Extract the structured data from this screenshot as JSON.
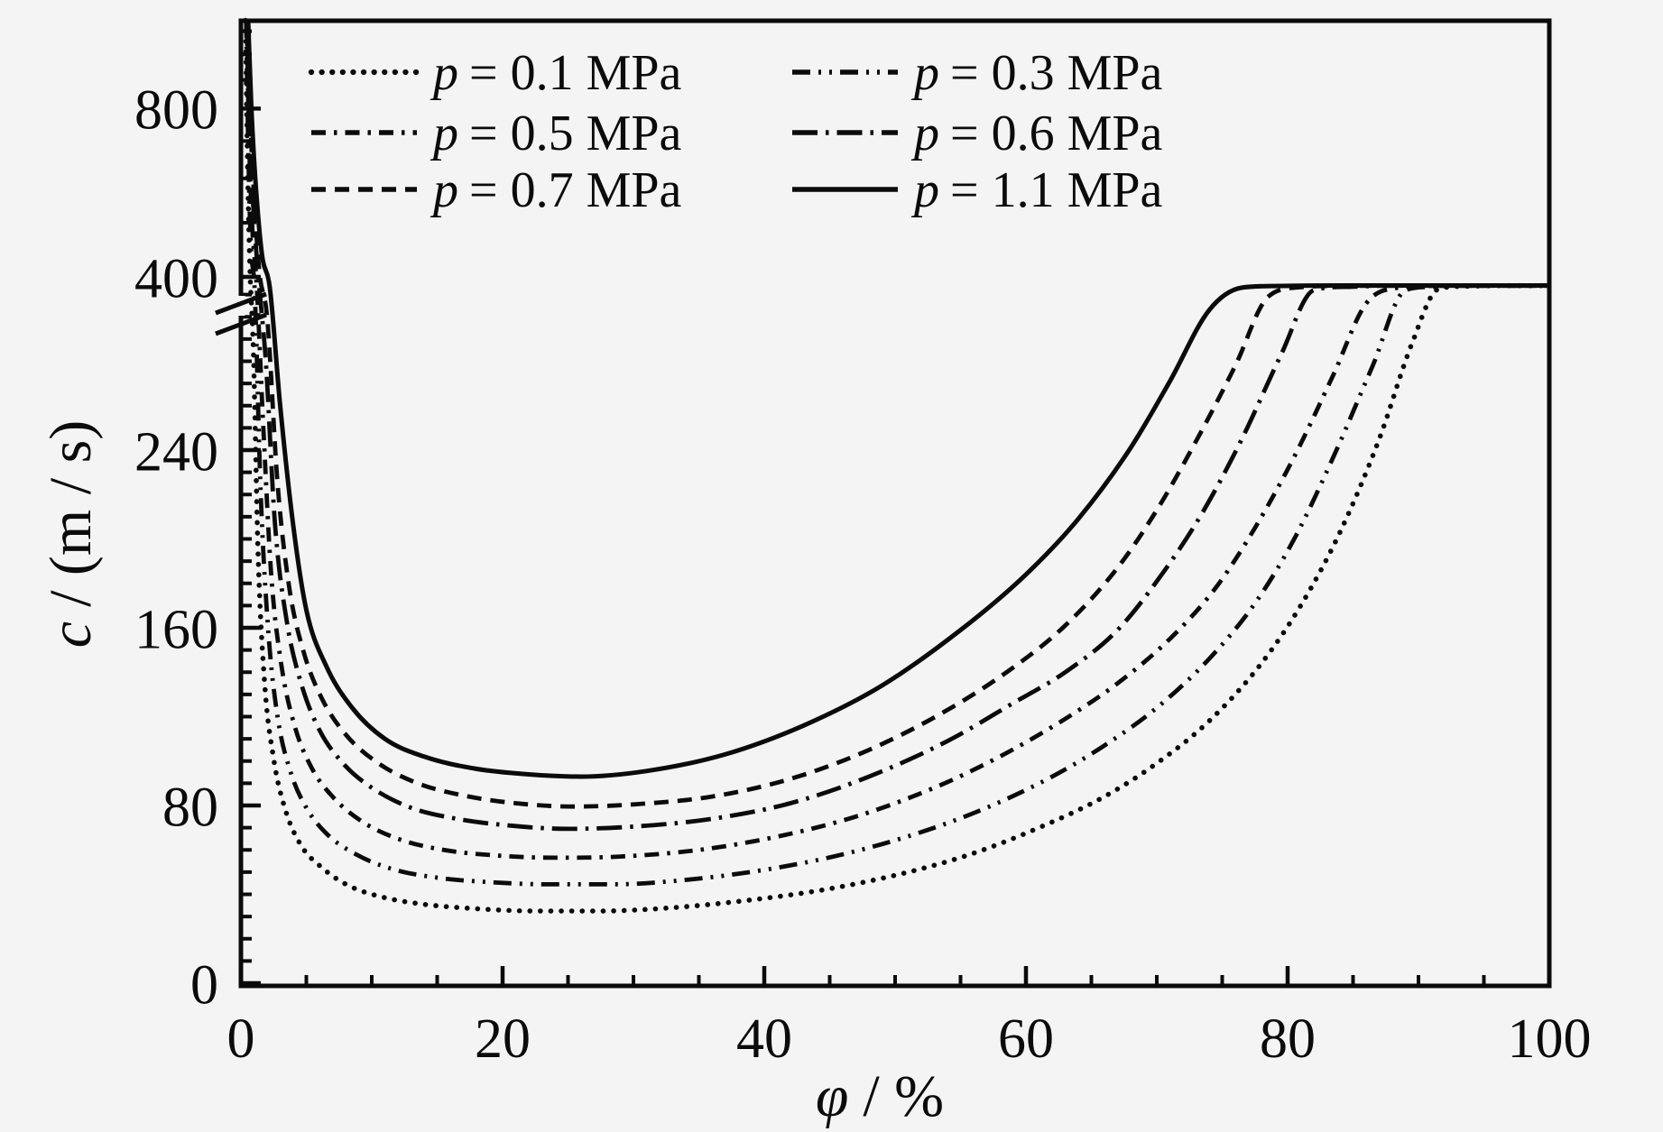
{
  "figure": {
    "background": "#f4f4f4",
    "ink": "#0b0b0b"
  },
  "chart_data": {
    "type": "line",
    "title": "",
    "xlabel": "φ / %",
    "xlabel_var": "φ",
    "xlabel_rest": "/ %",
    "ylabel": "c / (m / s)",
    "ylabel_var": "c",
    "ylabel_rest": "/ (m / s)",
    "x_axis": {
      "min": 0,
      "max": 100,
      "major_ticks": [
        0,
        20,
        40,
        60,
        80,
        100
      ],
      "minor_step": 5
    },
    "y_axis_linear": {
      "min": 0,
      "max": 312,
      "major_ticks": [
        0,
        80,
        160,
        240
      ],
      "minor_step": 10
    },
    "y_axis_break": {
      "between": [
        312,
        400
      ]
    },
    "y_axis_upper": {
      "scale": "log",
      "major_ticks": [
        400,
        800
      ],
      "minor_ticks": [
        500,
        600,
        700,
        900,
        1000,
        1100
      ]
    },
    "grid": false,
    "legend_position": "top-left-two-columns",
    "legend": [
      {
        "var": "p",
        "value": "0.1",
        "unit": "MPa",
        "series_index": 0
      },
      {
        "var": "p",
        "value": "0.3",
        "unit": "MPa",
        "series_index": 1
      },
      {
        "var": "p",
        "value": "0.5",
        "unit": "MPa",
        "series_index": 2
      },
      {
        "var": "p",
        "value": "0.6",
        "unit": "MPa",
        "series_index": 3
      },
      {
        "var": "p",
        "value": "0.7",
        "unit": "MPa",
        "series_index": 4
      },
      {
        "var": "p",
        "value": "1.1",
        "unit": "MPa",
        "series_index": 5
      }
    ],
    "series": [
      {
        "label": "p = 0.1 MPa",
        "pressure_MPa": 0.1,
        "line_style": "dotted",
        "points": [
          [
            0.35,
            1150
          ],
          [
            0.5,
            650
          ],
          [
            0.68,
            420
          ],
          [
            0.95,
            285
          ],
          [
            1.3,
            195
          ],
          [
            1.8,
            136
          ],
          [
            2.5,
            101
          ],
          [
            3.4,
            78
          ],
          [
            4.6,
            62
          ],
          [
            6.2,
            52
          ],
          [
            8.2,
            44
          ],
          [
            11,
            38.5
          ],
          [
            14,
            35.5
          ],
          [
            18,
            33.5
          ],
          [
            22.5,
            32.5
          ],
          [
            27.5,
            32.5
          ],
          [
            33,
            34
          ],
          [
            39,
            37.5
          ],
          [
            45,
            42.5
          ],
          [
            51,
            50
          ],
          [
            56,
            58.5
          ],
          [
            61,
            70
          ],
          [
            66,
            84
          ],
          [
            70,
            99
          ],
          [
            74,
            118
          ],
          [
            78,
            144
          ],
          [
            81,
            170
          ],
          [
            84,
            203
          ],
          [
            87,
            245
          ],
          [
            89.5,
            288
          ],
          [
            91.5,
            320
          ],
          [
            93.5,
            339
          ],
          [
            96,
            343
          ],
          [
            100,
            343
          ]
        ]
      },
      {
        "label": "p = 0.3 MPa",
        "pressure_MPa": 0.3,
        "line_style": "dashdotdot",
        "points": [
          [
            0.4,
            1150
          ],
          [
            0.55,
            700
          ],
          [
            0.75,
            460
          ],
          [
            1.05,
            320
          ],
          [
            1.5,
            222
          ],
          [
            2.1,
            158
          ],
          [
            2.8,
            120
          ],
          [
            3.8,
            95
          ],
          [
            5,
            79
          ],
          [
            6.6,
            67
          ],
          [
            8.8,
            58
          ],
          [
            11.5,
            51.5
          ],
          [
            15,
            47.5
          ],
          [
            19,
            45.5
          ],
          [
            23.5,
            44.5
          ],
          [
            28.5,
            44.5
          ],
          [
            34,
            46.5
          ],
          [
            40,
            51
          ],
          [
            46,
            58
          ],
          [
            52,
            68
          ],
          [
            57,
            79
          ],
          [
            62,
            93
          ],
          [
            66,
            107
          ],
          [
            70,
            124
          ],
          [
            74,
            146
          ],
          [
            77.5,
            171
          ],
          [
            80.5,
            200
          ],
          [
            83.5,
            237
          ],
          [
            86.5,
            278
          ],
          [
            89,
            313
          ],
          [
            91,
            335
          ],
          [
            93,
            342
          ],
          [
            100,
            343
          ]
        ]
      },
      {
        "label": "p = 0.5 MPa",
        "pressure_MPa": 0.5,
        "line_style": "dashdot",
        "points": [
          [
            0.45,
            1150
          ],
          [
            0.6,
            740
          ],
          [
            0.85,
            500
          ],
          [
            1.2,
            355
          ],
          [
            1.7,
            252
          ],
          [
            2.3,
            185
          ],
          [
            3.1,
            143
          ],
          [
            4.1,
            116
          ],
          [
            5.4,
            97
          ],
          [
            7,
            84
          ],
          [
            9.2,
            73
          ],
          [
            12,
            65
          ],
          [
            15.5,
            60
          ],
          [
            19.5,
            57.5
          ],
          [
            24,
            56.5
          ],
          [
            29,
            57
          ],
          [
            35,
            60
          ],
          [
            41,
            66
          ],
          [
            47,
            75
          ],
          [
            53,
            88
          ],
          [
            58,
            102
          ],
          [
            63,
            119
          ],
          [
            67,
            135
          ],
          [
            71,
            155
          ],
          [
            74.5,
            178
          ],
          [
            77.5,
            205
          ],
          [
            80.5,
            237
          ],
          [
            83.5,
            274
          ],
          [
            86,
            306
          ],
          [
            88.5,
            331
          ],
          [
            90.5,
            341
          ],
          [
            95,
            343
          ],
          [
            100,
            343
          ]
        ]
      },
      {
        "label": "p = 0.6 MPa",
        "pressure_MPa": 0.6,
        "line_style": "dashdotlong",
        "points": [
          [
            0.48,
            1150
          ],
          [
            0.65,
            760
          ],
          [
            0.95,
            530
          ],
          [
            1.35,
            385
          ],
          [
            1.9,
            280
          ],
          [
            2.6,
            207
          ],
          [
            3.5,
            163
          ],
          [
            4.6,
            135
          ],
          [
            6,
            114
          ],
          [
            7.8,
            99
          ],
          [
            10,
            88
          ],
          [
            13,
            79
          ],
          [
            16.5,
            74
          ],
          [
            20.5,
            71
          ],
          [
            25,
            69.5
          ],
          [
            30,
            70.5
          ],
          [
            36,
            74
          ],
          [
            42,
            81
          ],
          [
            48,
            93
          ],
          [
            54,
            109
          ],
          [
            59,
            126
          ],
          [
            63,
            140
          ],
          [
            67,
            159
          ],
          [
            70.5,
            185
          ],
          [
            73.5,
            212
          ],
          [
            76.5,
            245
          ],
          [
            79.5,
            283
          ],
          [
            82,
            314
          ],
          [
            84.5,
            335
          ],
          [
            87,
            342
          ],
          [
            93,
            343
          ],
          [
            100,
            343
          ]
        ]
      },
      {
        "label": "p = 0.7 MPa",
        "pressure_MPa": 0.7,
        "line_style": "dashed",
        "points": [
          [
            0.5,
            1150
          ],
          [
            0.7,
            780
          ],
          [
            1,
            560
          ],
          [
            1.4,
            410
          ],
          [
            2,
            300
          ],
          [
            2.8,
            225
          ],
          [
            3.7,
            178
          ],
          [
            4.8,
            149
          ],
          [
            6.2,
            128
          ],
          [
            8,
            112
          ],
          [
            10.5,
            99
          ],
          [
            13.5,
            90
          ],
          [
            17,
            84.5
          ],
          [
            21,
            81
          ],
          [
            25.5,
            79.5
          ],
          [
            30,
            80.5
          ],
          [
            36,
            84
          ],
          [
            42,
            92
          ],
          [
            48,
            105
          ],
          [
            54,
            123
          ],
          [
            59,
            142
          ],
          [
            63,
            161
          ],
          [
            67,
            187
          ],
          [
            70,
            213
          ],
          [
            73,
            244
          ],
          [
            76,
            278
          ],
          [
            78.5,
            309
          ],
          [
            81,
            333
          ],
          [
            83.5,
            341
          ],
          [
            90,
            343
          ],
          [
            100,
            343
          ]
        ]
      },
      {
        "label": "p = 1.1 MPa",
        "pressure_MPa": 1.1,
        "line_style": "solid",
        "points": [
          [
            0.55,
            1150
          ],
          [
            0.8,
            800
          ],
          [
            1.1,
            600
          ],
          [
            1.6,
            440
          ],
          [
            2.2,
            335
          ],
          [
            3,
            260
          ],
          [
            4,
            206
          ],
          [
            5,
            168
          ],
          [
            6.5,
            143
          ],
          [
            8.5,
            124
          ],
          [
            11,
            110
          ],
          [
            14,
            102
          ],
          [
            18,
            96.5
          ],
          [
            22,
            94
          ],
          [
            26,
            93
          ],
          [
            31,
            95.5
          ],
          [
            37,
            103
          ],
          [
            43,
            116
          ],
          [
            49,
            134
          ],
          [
            55,
            159
          ],
          [
            60,
            184
          ],
          [
            64,
            209
          ],
          [
            68,
            241
          ],
          [
            71,
            271
          ],
          [
            74,
            303
          ],
          [
            76.5,
            330
          ],
          [
            79,
            341
          ],
          [
            84,
            344
          ],
          [
            92,
            344
          ],
          [
            100,
            344
          ]
        ]
      }
    ]
  }
}
